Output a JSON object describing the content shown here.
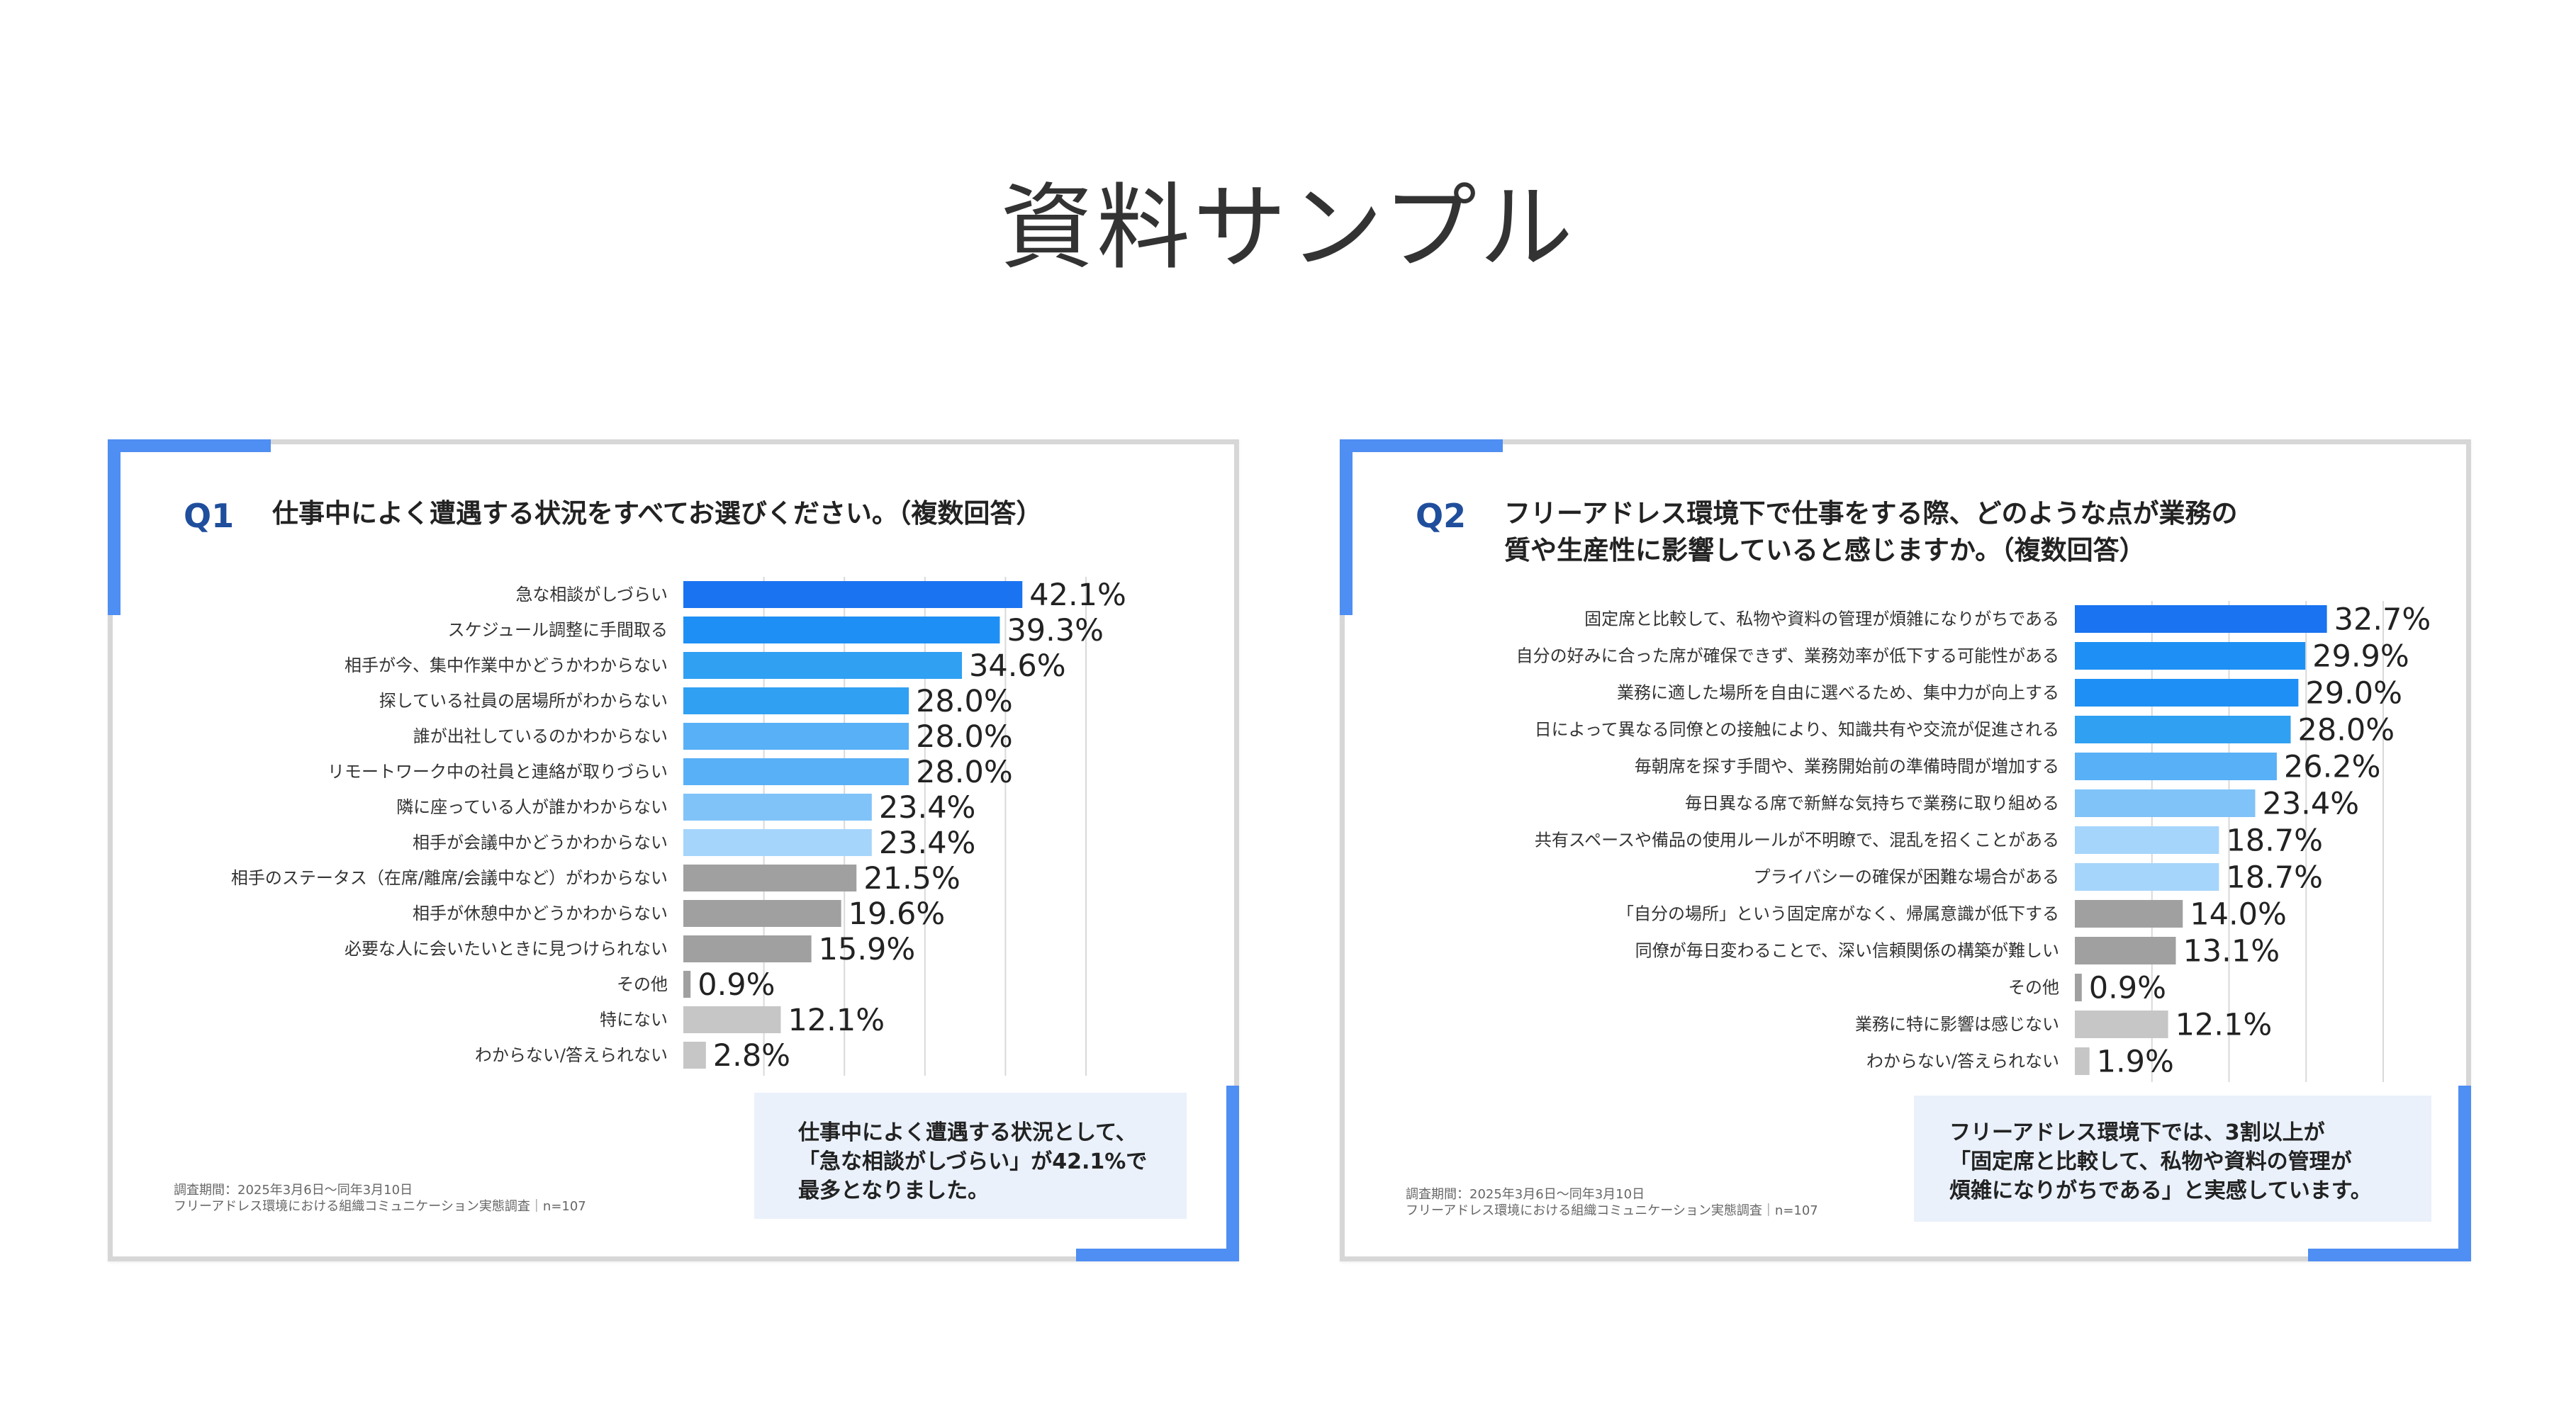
{
  "page": {
    "title": "資料サンプル"
  },
  "colors": {
    "accent": "#4f8ef2",
    "blue_1": "#1a73f0",
    "blue_2": "#1e90f5",
    "blue_3": "#30a0f3",
    "blue_4": "#58b0f6",
    "blue_5": "#80c3f9",
    "blue_6": "#a6d5fb",
    "gray_dark": "#a0a0a0",
    "gray_light": "#c6c6c6"
  },
  "panels": [
    {
      "qlabel": "Q1",
      "question": "仕事中によく遭遇する状況をすべてお選びください。（複数回答）",
      "note_lines": [
        "仕事中によく遭遇する状況として、",
        "「急な相談がしづらい」が42.1%で",
        "最多となりました。"
      ],
      "source_lines": [
        "調査期間：2025年3月6日〜同年3月10日",
        "フリーアドレス環境における組織コミュニケーション実態調査｜n=107"
      ]
    },
    {
      "qlabel": "Q2",
      "question_lines": [
        "フリーアドレス環境下で仕事をする際、どのような点が業務の",
        "質や生産性に影響していると感じますか。（複数回答）"
      ],
      "note_lines": [
        "フリーアドレス環境下では、3割以上が",
        "「固定席と比較して、私物や資料の管理が",
        "煩雑になりがちである」と実感しています。"
      ],
      "source_lines": [
        "調査期間：2025年3月6日〜同年3月10日",
        "フリーアドレス環境における組織コミュニケーション実態調査｜n=107"
      ]
    }
  ],
  "chart_data": [
    {
      "type": "bar",
      "orientation": "horizontal",
      "unit": "%",
      "xlim": [
        0,
        50
      ],
      "grid": true,
      "categories": [
        "急な相談がしづらい",
        "スケジュール調整に手間取る",
        "相手が今、集中作業中かどうかわからない",
        "探している社員の居場所がわからない",
        "誰が出社しているのかわからない",
        "リモートワーク中の社員と連絡が取りづらい",
        "隣に座っている人が誰かわからない",
        "相手が会議中かどうかわからない",
        "相手のステータス（在席/離席/会議中など）がわからない",
        "相手が休憩中かどうかわからない",
        "必要な人に会いたいときに見つけられない",
        "その他",
        "特にない",
        "わからない/答えられない"
      ],
      "values": [
        42.1,
        39.3,
        34.6,
        28.0,
        28.0,
        28.0,
        23.4,
        23.4,
        21.5,
        19.6,
        15.9,
        0.9,
        12.1,
        2.8
      ],
      "value_labels": [
        "42.1%",
        "39.3%",
        "34.6%",
        "28.0%",
        "28.0%",
        "28.0%",
        "23.4%",
        "23.4%",
        "21.5%",
        "19.6%",
        "15.9%",
        "0.9%",
        "12.1%",
        "2.8%"
      ],
      "colors": [
        "#1a73f0",
        "#1e90f5",
        "#30a0f3",
        "#30a0f3",
        "#58b0f6",
        "#58b0f6",
        "#80c3f9",
        "#a6d5fb",
        "#a0a0a0",
        "#a0a0a0",
        "#a0a0a0",
        "#a0a0a0",
        "#c6c6c6",
        "#c6c6c6"
      ]
    },
    {
      "type": "bar",
      "orientation": "horizontal",
      "unit": "%",
      "xlim": [
        0,
        40
      ],
      "grid": true,
      "categories": [
        "固定席と比較して、私物や資料の管理が煩雑になりがちである",
        "自分の好みに合った席が確保できず、業務効率が低下する可能性がある",
        "業務に適した場所を自由に選べるため、集中力が向上する",
        "日によって異なる同僚との接触により、知識共有や交流が促進される",
        "毎朝席を探す手間や、業務開始前の準備時間が増加する",
        "毎日異なる席で新鮮な気持ちで業務に取り組める",
        "共有スペースや備品の使用ルールが不明瞭で、混乱を招くことがある",
        "プライバシーの確保が困難な場合がある",
        "「自分の場所」という固定席がなく、帰属意識が低下する",
        "同僚が毎日変わることで、深い信頼関係の構築が難しい",
        "その他",
        "業務に特に影響は感じない",
        "わからない/答えられない"
      ],
      "values": [
        32.7,
        29.9,
        29.0,
        28.0,
        26.2,
        23.4,
        18.7,
        18.7,
        14.0,
        13.1,
        0.9,
        12.1,
        1.9
      ],
      "value_labels": [
        "32.7%",
        "29.9%",
        "29.0%",
        "28.0%",
        "26.2%",
        "23.4%",
        "18.7%",
        "18.7%",
        "14.0%",
        "13.1%",
        "0.9%",
        "12.1%",
        "1.9%"
      ],
      "colors": [
        "#1a73f0",
        "#1e90f5",
        "#1e90f5",
        "#30a0f3",
        "#58b0f6",
        "#80c3f9",
        "#a6d5fb",
        "#a6d5fb",
        "#a0a0a0",
        "#a0a0a0",
        "#a0a0a0",
        "#c6c6c6",
        "#c6c6c6"
      ]
    }
  ]
}
